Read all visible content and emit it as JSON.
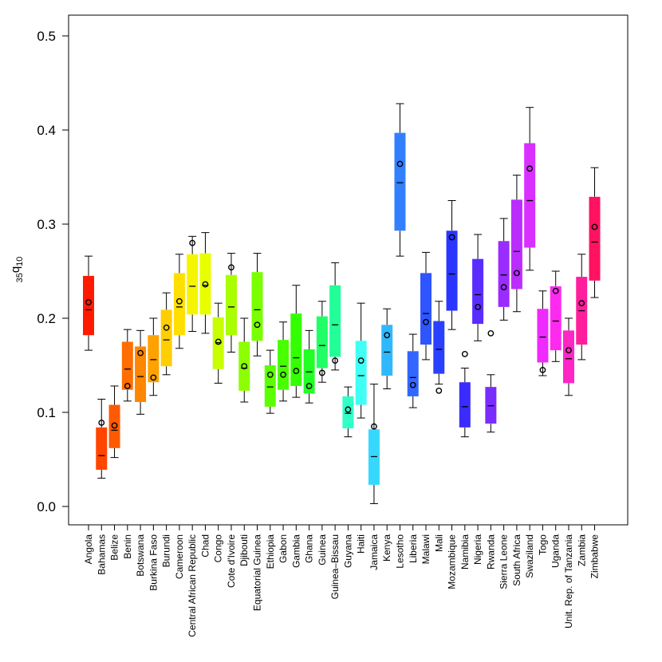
{
  "chart_data": {
    "type": "boxplot",
    "title": "",
    "xlabel": "",
    "ylabel": {
      "base": "q",
      "pre_sub": "35",
      "post_sub": "10"
    },
    "ylim": [
      -0.02,
      0.52
    ],
    "yticks": [
      "0.0",
      "0.1",
      "0.2",
      "0.3",
      "0.4",
      "0.5"
    ],
    "ytick_values": [
      0.0,
      0.1,
      0.2,
      0.3,
      0.4,
      0.5
    ],
    "categories": [
      "Angola",
      "Bahamas",
      "Belize",
      "Benin",
      "Botswana",
      "Burkina Faso",
      "Burundi",
      "Cameroon",
      "Central African Republic",
      "Chad",
      "Congo",
      "Cote d'Ivoire",
      "Djibouti",
      "Equatorial Guinea",
      "Ethiopia",
      "Gabon",
      "Gambia",
      "Ghana",
      "Guinea",
      "Guinea–Bissau",
      "Guyana",
      "Haiti",
      "Jamaica",
      "Kenya",
      "Lesotho",
      "Liberia",
      "Malawi",
      "Mali",
      "Mozambique",
      "Namibia",
      "Nigeria",
      "Rwanda",
      "Sierra Leone",
      "South Africa",
      "Swaziland",
      "Togo",
      "Uganda",
      "Unit. Rep. of Tanzania",
      "Zambia",
      "Zimbabwe"
    ],
    "colors": [
      "#ff1a00",
      "#ff4500",
      "#ff5a00",
      "#ff6e00",
      "#ff8600",
      "#ffa200",
      "#ffce00",
      "#ffdf00",
      "#f5f500",
      "#e8ff00",
      "#c8ff00",
      "#aaff00",
      "#8cff00",
      "#7aff00",
      "#5cff00",
      "#48ff00",
      "#34ff00",
      "#22ff22",
      "#20ff66",
      "#22ff99",
      "#30ffc8",
      "#40fff5",
      "#36d8ff",
      "#30b8ff",
      "#3380ff",
      "#3366ff",
      "#2e55ff",
      "#2a40ff",
      "#2a36ff",
      "#3a2cff",
      "#5a2cff",
      "#7a2cff",
      "#9a2cff",
      "#bb2cff",
      "#d830ff",
      "#ee2aff",
      "#ff2af0",
      "#ff26c6",
      "#ff1e9c",
      "#ff1260"
    ],
    "whisker_low": [
      0.166,
      0.03,
      0.052,
      0.112,
      0.098,
      0.118,
      0.14,
      0.168,
      0.186,
      0.184,
      0.131,
      0.164,
      0.111,
      0.16,
      0.099,
      0.112,
      0.116,
      0.11,
      0.132,
      0.145,
      0.074,
      0.094,
      0.003,
      0.125,
      0.266,
      0.105,
      0.156,
      0.13,
      0.188,
      0.074,
      0.176,
      0.079,
      0.198,
      0.207,
      0.251,
      0.139,
      0.154,
      0.118,
      0.156,
      0.222
    ],
    "q1": [
      0.182,
      0.039,
      0.062,
      0.124,
      0.111,
      0.132,
      0.149,
      0.182,
      0.204,
      0.204,
      0.146,
      0.182,
      0.123,
      0.176,
      0.106,
      0.124,
      0.128,
      0.12,
      0.147,
      0.159,
      0.083,
      0.108,
      0.023,
      0.139,
      0.293,
      0.117,
      0.172,
      0.141,
      0.208,
      0.084,
      0.194,
      0.088,
      0.212,
      0.231,
      0.275,
      0.153,
      0.166,
      0.131,
      0.172,
      0.24
    ],
    "median": [
      0.209,
      0.054,
      0.081,
      0.146,
      0.138,
      0.156,
      0.177,
      0.212,
      0.234,
      0.235,
      0.174,
      0.212,
      0.147,
      0.209,
      0.127,
      0.149,
      0.158,
      0.143,
      0.171,
      0.193,
      0.099,
      0.139,
      0.053,
      0.164,
      0.344,
      0.137,
      0.205,
      0.167,
      0.247,
      0.106,
      0.225,
      0.107,
      0.246,
      0.271,
      0.325,
      0.18,
      0.197,
      0.157,
      0.208,
      0.281
    ],
    "q3": [
      0.245,
      0.084,
      0.108,
      0.175,
      0.17,
      0.182,
      0.209,
      0.248,
      0.268,
      0.269,
      0.201,
      0.246,
      0.175,
      0.249,
      0.15,
      0.177,
      0.205,
      0.167,
      0.202,
      0.235,
      0.117,
      0.176,
      0.082,
      0.193,
      0.397,
      0.165,
      0.248,
      0.197,
      0.293,
      0.132,
      0.263,
      0.127,
      0.282,
      0.326,
      0.386,
      0.21,
      0.234,
      0.187,
      0.244,
      0.329
    ],
    "whisker_high": [
      0.266,
      0.114,
      0.128,
      0.188,
      0.187,
      0.2,
      0.227,
      0.268,
      0.287,
      0.291,
      0.216,
      0.269,
      0.2,
      0.269,
      0.166,
      0.196,
      0.235,
      0.187,
      0.218,
      0.259,
      0.127,
      0.216,
      0.13,
      0.21,
      0.428,
      0.183,
      0.27,
      0.218,
      0.325,
      0.147,
      0.289,
      0.14,
      0.306,
      0.352,
      0.424,
      0.229,
      0.25,
      0.2,
      0.268,
      0.36
    ],
    "points": [
      0.217,
      0.089,
      0.086,
      0.128,
      0.163,
      0.137,
      0.19,
      0.218,
      0.28,
      0.236,
      0.175,
      0.254,
      0.149,
      0.193,
      0.14,
      0.14,
      0.144,
      0.128,
      0.142,
      0.155,
      0.103,
      0.155,
      0.085,
      0.182,
      0.364,
      0.129,
      0.196,
      0.123,
      0.286,
      0.162,
      0.212,
      0.184,
      0.233,
      0.248,
      0.359,
      0.145,
      0.229,
      0.166,
      0.216,
      0.297
    ]
  }
}
